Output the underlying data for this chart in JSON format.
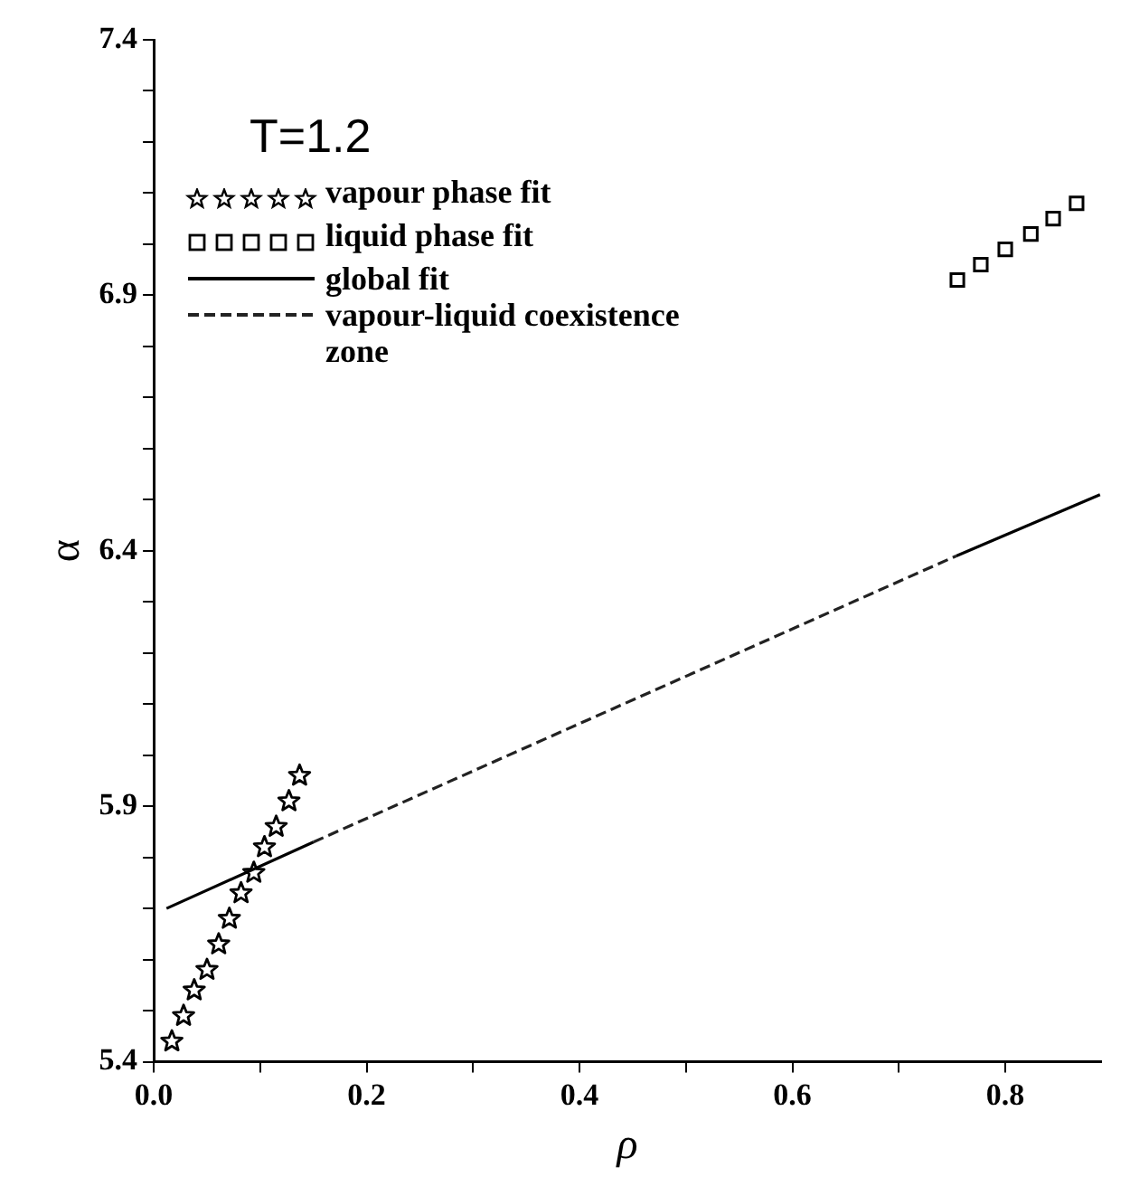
{
  "chart_data": {
    "type": "line",
    "xlabel": "ρ",
    "ylabel": "α",
    "annotations": [
      "T=1.2"
    ],
    "xlim": [
      0,
      0.89
    ],
    "ylim": [
      5.4,
      7.4
    ],
    "xticks": [
      {
        "value": 0,
        "label": "0.0"
      },
      {
        "value": 0.1,
        "label": null
      },
      0.2,
      {
        "value": 0.3,
        "label": null
      },
      0.4,
      {
        "value": 0.5,
        "label": null
      },
      0.6,
      {
        "value": 0.7,
        "label": null
      },
      0.8
    ],
    "yticks": [
      5.4,
      {
        "value": 5.5,
        "label": null
      },
      {
        "value": 5.6,
        "label": null
      },
      {
        "value": 5.7,
        "label": null
      },
      {
        "value": 5.8,
        "label": null
      },
      5.9,
      {
        "value": 6.0,
        "label": null
      },
      {
        "value": 6.1,
        "label": null
      },
      {
        "value": 6.2,
        "label": null
      },
      {
        "value": 6.3,
        "label": null
      },
      6.4,
      {
        "value": 6.5,
        "label": null
      },
      {
        "value": 6.6,
        "label": null
      },
      {
        "value": 6.7,
        "label": null
      },
      {
        "value": 6.8,
        "label": null
      },
      6.9,
      {
        "value": 7.0,
        "label": null
      },
      {
        "value": 7.1,
        "label": null
      },
      {
        "value": 7.2,
        "label": null
      },
      {
        "value": 7.3,
        "label": null
      },
      7.4
    ],
    "grid": false,
    "legend": "top left",
    "series": [
      {
        "name": "vapour phase fit",
        "type": "scatter",
        "marker": "star",
        "color": "#000000",
        "x": [
          0.017,
          0.028,
          0.038,
          0.05,
          0.061,
          0.071,
          0.082,
          0.094,
          0.104,
          0.115,
          0.127,
          0.137
        ],
        "values": [
          5.44,
          5.49,
          5.54,
          5.58,
          5.63,
          5.68,
          5.73,
          5.77,
          5.82,
          5.86,
          5.91,
          5.96
        ]
      },
      {
        "name": "liquid phase fit",
        "type": "scatter",
        "marker": "square",
        "color": "#000000",
        "x": [
          0.755,
          0.777,
          0.8,
          0.824,
          0.845,
          0.867
        ],
        "values": [
          6.93,
          6.96,
          6.99,
          7.02,
          7.05,
          7.08
        ]
      },
      {
        "name": "global fit",
        "type": "line",
        "line_style": "solid",
        "marker": "none",
        "color": "#000000",
        "x": [
          0.012,
          0.15,
          0.45,
          0.754,
          0.889
        ],
        "values": [
          5.7,
          5.83,
          null,
          6.39,
          6.51
        ]
      },
      {
        "name": "vapour-liquid coexistence zone",
        "type": "line",
        "line_style": "dashed",
        "marker": "none",
        "color": "#222222",
        "x": [
          0.15,
          0.754
        ],
        "values": [
          5.83,
          6.39
        ]
      }
    ]
  }
}
